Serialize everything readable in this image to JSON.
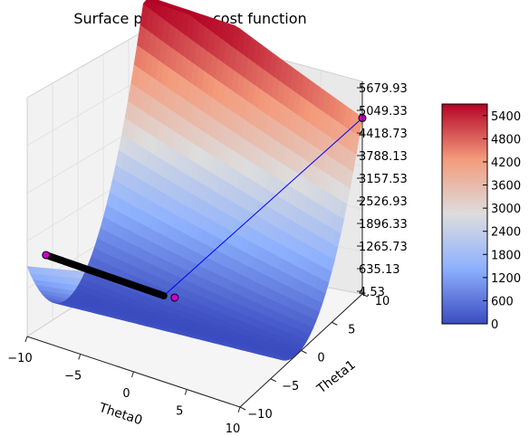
{
  "chart_data": {
    "type": "surface",
    "title": "Surface plot of the cost function",
    "xlabel": "Theta0",
    "ylabel": "Theta1",
    "x_ticks": [
      "−10",
      "−5",
      "0",
      "5",
      "10"
    ],
    "y_ticks": [
      "−10",
      "−5",
      "0",
      "5",
      "10"
    ],
    "xlim": [
      -10,
      10
    ],
    "ylim": [
      -10,
      10
    ],
    "z_ticks": [
      "5679.93",
      "5049.33",
      "4418.73",
      "3788.13",
      "3157.53",
      "2526.93",
      "1896.33",
      "1265.73",
      "635.13",
      "4.53"
    ],
    "zlim": [
      4.53,
      5679.93
    ],
    "colorbar": {
      "colormap": "coolwarm",
      "ticks": [
        "5400",
        "4800",
        "4200",
        "3600",
        "3000",
        "2400",
        "1800",
        "1200",
        "600",
        "0"
      ],
      "range": [
        0,
        5700
      ],
      "low_color": "#3b4cc0",
      "mid_color": "#dddddd",
      "high_color": "#b40426"
    },
    "surface": {
      "theta0_range": [
        -10,
        10
      ],
      "theta1_range": [
        -10,
        10
      ],
      "cost_range": [
        4.53,
        5679.93
      ]
    },
    "descent_path": {
      "color": "#0000ff",
      "marker_color": "#cc00cc",
      "start": {
        "theta0": 10,
        "theta1": 10,
        "cost": 4418.73
      },
      "minimum": {
        "theta0": -3.6,
        "theta1": 1.2,
        "cost": 4.53
      }
    },
    "grid": true,
    "legend": "none"
  }
}
